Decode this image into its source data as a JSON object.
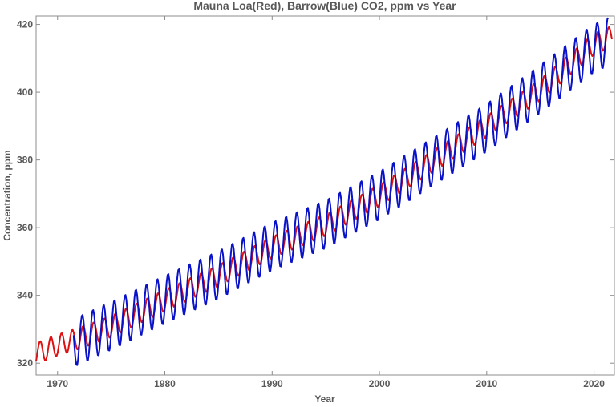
{
  "chart_data": {
    "type": "line",
    "title": "Mauna Loa(Red), Barrow(Blue) CO2, ppm vs Year",
    "xlabel": "Year",
    "ylabel": "Concentration, ppm",
    "xlim": [
      1968.0,
      2021.9
    ],
    "ylim": [
      316.5,
      422.5
    ],
    "xticks": [
      1970,
      1980,
      1990,
      2000,
      2010,
      2020
    ],
    "xtick_labels": [
      "1970",
      "1980",
      "1990",
      "2000",
      "2010",
      "2020"
    ],
    "yticks": [
      320,
      340,
      360,
      380,
      400,
      420
    ],
    "ytick_labels": [
      "320",
      "340",
      "360",
      "380",
      "400",
      "420"
    ],
    "grid": false,
    "legend": "none",
    "series": [
      {
        "color": "#dd1111",
        "amplitude": 3.2,
        "peak_phase": 0.375,
        "x": [
          1968,
          1970,
          1972,
          1975,
          1980,
          1985,
          1990,
          1995,
          2000,
          2005,
          2010,
          2015,
          2020,
          2021.7
        ],
        "y": [
          322.9,
          325.3,
          327.3,
          330.8,
          338.5,
          345.8,
          354.2,
          360.8,
          369.5,
          379.6,
          389.9,
          400.7,
          414.2,
          416.5
        ]
      },
      {
        "color": "#0a12c8",
        "amplitude": 7.2,
        "peak_phase": 0.3,
        "x": [
          1971.5,
          1975,
          1980,
          1985,
          1990,
          1995,
          2000,
          2005,
          2010,
          2015,
          2020,
          2021.4
        ],
        "y": [
          326.0,
          331.0,
          338.8,
          346.0,
          354.5,
          361.0,
          369.5,
          379.5,
          389.5,
          401.0,
          413.0,
          415.0
        ]
      }
    ]
  }
}
